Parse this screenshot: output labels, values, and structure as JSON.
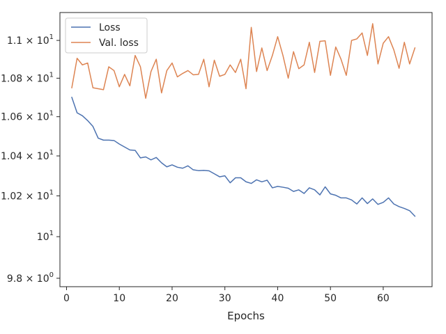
{
  "chart_data": {
    "type": "line",
    "xlabel": "Epochs",
    "ylabel": "",
    "xlim": [
      -1.25,
      69.25
    ],
    "ylim": [
      9.76,
      11.15
    ],
    "yscale": "log",
    "grid": false,
    "legend_position": "top-left",
    "x_ticks": [
      0,
      10,
      20,
      30,
      40,
      50,
      60
    ],
    "x_tick_labels": [
      "0",
      "10",
      "20",
      "30",
      "40",
      "50",
      "60"
    ],
    "y_ticks": [
      9.8,
      10.0,
      10.2,
      10.4,
      10.6,
      10.8,
      11.0
    ],
    "y_tick_labels": [
      {
        "base": "9.8 × 10",
        "exp": "0"
      },
      {
        "base": "10",
        "exp": "1"
      },
      {
        "base": "1.02 × 10",
        "exp": "1"
      },
      {
        "base": "1.04 × 10",
        "exp": "1"
      },
      {
        "base": "1.06 × 10",
        "exp": "1"
      },
      {
        "base": "1.08 × 10",
        "exp": "1"
      },
      {
        "base": "1.1 × 10",
        "exp": "1"
      }
    ],
    "x": [
      1,
      2,
      3,
      4,
      5,
      6,
      7,
      8,
      9,
      10,
      11,
      12,
      13,
      14,
      15,
      16,
      17,
      18,
      19,
      20,
      21,
      22,
      23,
      24,
      25,
      26,
      27,
      28,
      29,
      30,
      31,
      32,
      33,
      34,
      35,
      36,
      37,
      38,
      39,
      40,
      41,
      42,
      43,
      44,
      45,
      46,
      47,
      48,
      49,
      50,
      51,
      52,
      53,
      54,
      55,
      56,
      57,
      58,
      59,
      60,
      61,
      62,
      63,
      64,
      65,
      66
    ],
    "series": [
      {
        "name": "Loss",
        "color": "#4c72b0",
        "values": [
          10.7,
          10.62,
          10.605,
          10.58,
          10.55,
          10.49,
          10.48,
          10.48,
          10.478,
          10.46,
          10.445,
          10.43,
          10.428,
          10.39,
          10.395,
          10.38,
          10.392,
          10.365,
          10.345,
          10.355,
          10.343,
          10.338,
          10.35,
          10.33,
          10.326,
          10.327,
          10.325,
          10.31,
          10.295,
          10.3,
          10.265,
          10.29,
          10.29,
          10.27,
          10.262,
          10.28,
          10.27,
          10.278,
          10.24,
          10.247,
          10.243,
          10.238,
          10.222,
          10.23,
          10.212,
          10.24,
          10.23,
          10.205,
          10.245,
          10.21,
          10.203,
          10.19,
          10.19,
          10.18,
          10.16,
          10.19,
          10.162,
          10.185,
          10.158,
          10.168,
          10.19,
          10.16,
          10.147,
          10.138,
          10.127,
          10.1
        ]
      },
      {
        "name": "Val. loss",
        "color": "#dd8452",
        "values": [
          10.75,
          10.905,
          10.87,
          10.88,
          10.75,
          10.745,
          10.74,
          10.86,
          10.84,
          10.755,
          10.82,
          10.76,
          10.92,
          10.86,
          10.695,
          10.835,
          10.9,
          10.723,
          10.84,
          10.88,
          10.807,
          10.825,
          10.84,
          10.818,
          10.82,
          10.9,
          10.755,
          10.895,
          10.81,
          10.82,
          10.87,
          10.83,
          10.9,
          10.745,
          11.07,
          10.835,
          10.96,
          10.84,
          10.92,
          11.02,
          10.92,
          10.8,
          10.94,
          10.85,
          10.87,
          10.99,
          10.83,
          10.995,
          10.998,
          10.815,
          10.965,
          10.9,
          10.815,
          11.0,
          11.008,
          11.04,
          10.92,
          11.09,
          10.875,
          10.985,
          11.02,
          10.95,
          10.852,
          10.99,
          10.875,
          10.96
        ]
      }
    ]
  }
}
